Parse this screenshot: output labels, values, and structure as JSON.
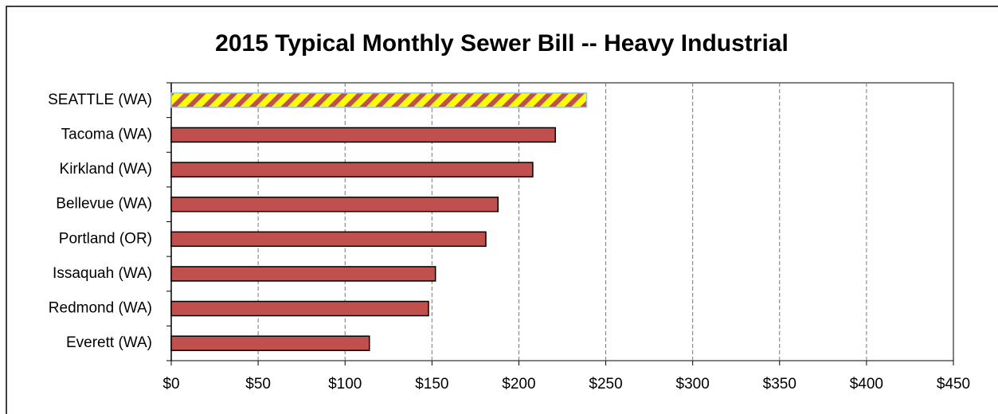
{
  "chart_data": {
    "type": "bar",
    "orientation": "horizontal",
    "title": "2015 Typical Monthly Sewer Bill -- Heavy Industrial",
    "categories": [
      "SEATTLE (WA)",
      "Tacoma (WA)",
      "Kirkland (WA)",
      "Bellevue (WA)",
      "Portland (OR)",
      "Issaquah (WA)",
      "Redmond (WA)",
      "Everett (WA)"
    ],
    "values": [
      239,
      221,
      208,
      188,
      181,
      152,
      148,
      114
    ],
    "color": "#c0504d",
    "colors": [
      "#ffff00",
      "#c0504d",
      "#c0504d",
      "#c0504d",
      "#c0504d",
      "#c0504d",
      "#c0504d",
      "#c0504d"
    ],
    "xlim": [
      0,
      450
    ],
    "xticks": [
      {
        "value": 0,
        "label": "$0"
      },
      {
        "value": 50,
        "label": "$50"
      },
      {
        "value": 100,
        "label": "$100"
      },
      {
        "value": 150,
        "label": "$150"
      },
      {
        "value": 200,
        "label": "$200"
      },
      {
        "value": 250,
        "label": "$250"
      },
      {
        "value": 300,
        "label": "$300"
      },
      {
        "value": 350,
        "label": "$350"
      },
      {
        "value": 400,
        "label": "$400"
      },
      {
        "value": 450,
        "label": "$450"
      }
    ],
    "grid": true
  }
}
